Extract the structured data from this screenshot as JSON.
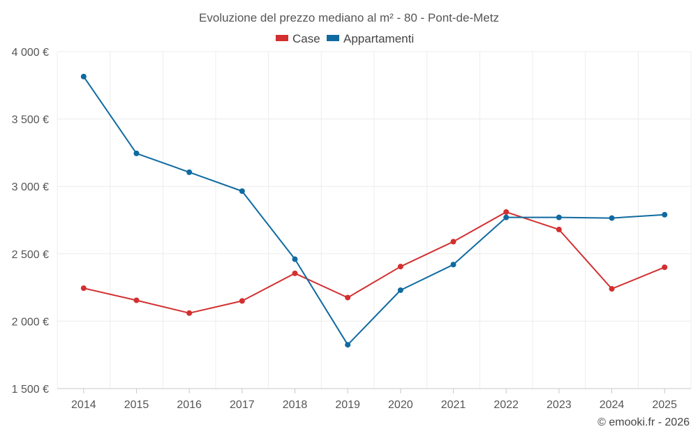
{
  "chart_data": {
    "type": "line",
    "title": "Evoluzione del prezzo mediano al m² - 80 - Pont-de-Metz",
    "categories": [
      "2014",
      "2015",
      "2016",
      "2017",
      "2018",
      "2019",
      "2020",
      "2021",
      "2022",
      "2023",
      "2024",
      "2025"
    ],
    "series": [
      {
        "name": "Case",
        "color": "#d32f2f",
        "values": [
          2245,
          2155,
          2060,
          2150,
          2355,
          2175,
          2405,
          2590,
          2810,
          2680,
          2240,
          2400
        ]
      },
      {
        "name": "Appartamenti",
        "color": "#0f6aa0",
        "values": [
          3815,
          3245,
          3105,
          2965,
          2460,
          1825,
          2230,
          2420,
          2770,
          2770,
          2765,
          2790
        ]
      }
    ],
    "ylim": [
      1500,
      4000
    ],
    "yticks": [
      1500,
      2000,
      2500,
      3000,
      3500,
      4000
    ],
    "ytick_labels": [
      "1 500 €",
      "2 000 €",
      "2 500 €",
      "3 000 €",
      "3 500 €",
      "4 000 €"
    ],
    "xlabel": "",
    "ylabel": "",
    "legend_position": "top-center",
    "grid": true
  },
  "credit": "© emooki.fr - 2026"
}
